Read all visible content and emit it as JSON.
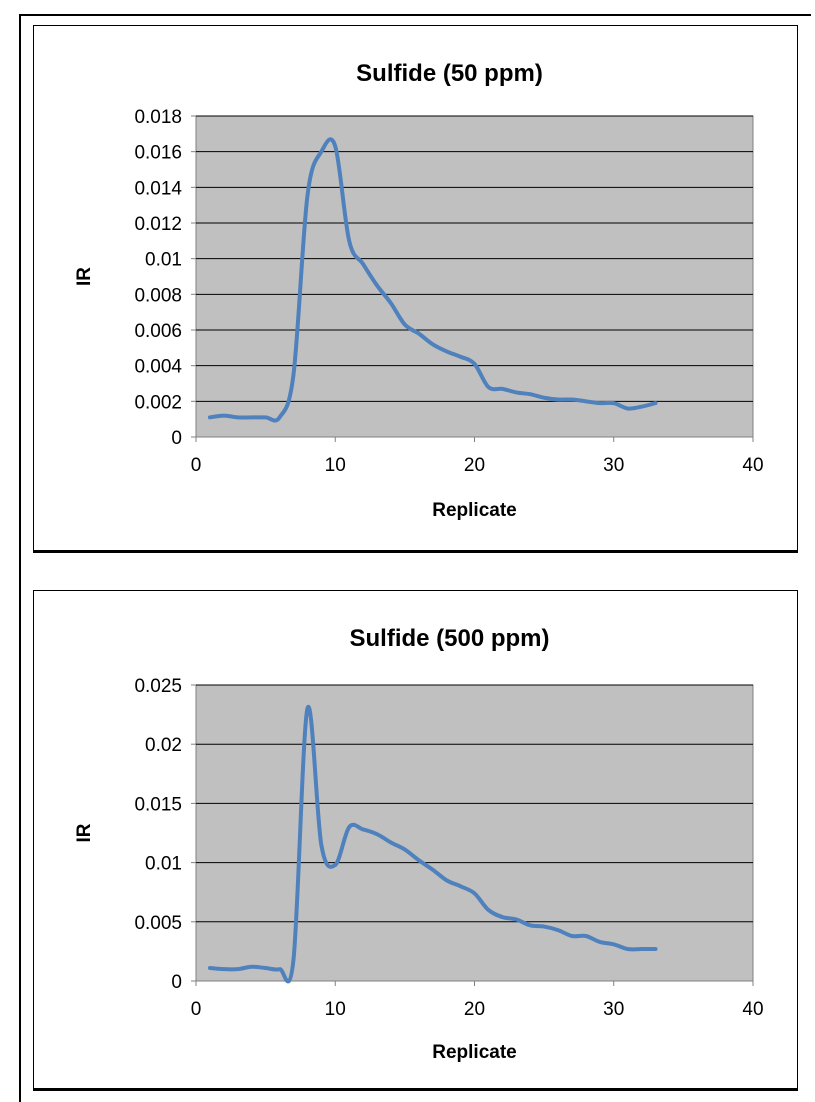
{
  "chart_data": [
    {
      "type": "line",
      "title": "Sulfide (50 ppm)",
      "xlabel": "Replicate",
      "ylabel": "IR",
      "xlim": [
        0,
        40
      ],
      "ylim": [
        0,
        0.018
      ],
      "xticks": [
        "0",
        "10",
        "20",
        "30",
        "40"
      ],
      "yticks": [
        "0",
        "0.002",
        "0.004",
        "0.006",
        "0.008",
        "0.01",
        "0.012",
        "0.014",
        "0.016",
        "0.018"
      ],
      "grid": true,
      "plot_background": "#c0c0c0",
      "line_color": "#4f81bd",
      "series": [
        {
          "x": [
            1,
            2,
            3,
            4,
            5,
            6,
            7,
            8,
            9,
            10,
            11,
            12,
            13,
            14,
            15,
            16,
            17,
            18,
            19,
            20,
            21,
            22,
            23,
            24,
            25,
            26,
            27,
            28,
            29,
            30,
            31,
            32,
            33
          ],
          "values": [
            0.0011,
            0.0012,
            0.0011,
            0.0011,
            0.0011,
            0.0011,
            0.0035,
            0.0135,
            0.016,
            0.0163,
            0.011,
            0.0097,
            0.0085,
            0.0075,
            0.0063,
            0.0058,
            0.0052,
            0.0048,
            0.0045,
            0.0041,
            0.0028,
            0.0027,
            0.0025,
            0.0024,
            0.0022,
            0.0021,
            0.0021,
            0.002,
            0.0019,
            0.0019,
            0.0016,
            0.0017,
            0.0019
          ]
        }
      ]
    },
    {
      "type": "line",
      "title": "Sulfide (500 ppm)",
      "xlabel": "Replicate",
      "ylabel": "IR",
      "xlim": [
        0,
        40
      ],
      "ylim": [
        0,
        0.025
      ],
      "xticks": [
        "0",
        "10",
        "20",
        "30",
        "40"
      ],
      "yticks": [
        "0",
        "0.005",
        "0.01",
        "0.015",
        "0.02",
        "0.025"
      ],
      "grid": true,
      "plot_background": "#c0c0c0",
      "line_color": "#4f81bd",
      "series": [
        {
          "x": [
            1,
            2,
            3,
            4,
            5,
            6,
            7,
            8,
            9,
            10,
            11,
            12,
            13,
            14,
            15,
            16,
            17,
            18,
            19,
            20,
            21,
            22,
            23,
            24,
            25,
            26,
            27,
            28,
            29,
            30,
            31,
            32,
            33
          ],
          "values": [
            0.0011,
            0.001,
            0.001,
            0.0012,
            0.0011,
            0.001,
            0.0018,
            0.023,
            0.0115,
            0.0098,
            0.013,
            0.0128,
            0.0124,
            0.0117,
            0.0111,
            0.0102,
            0.0094,
            0.0085,
            0.008,
            0.0074,
            0.006,
            0.0054,
            0.0052,
            0.0047,
            0.0046,
            0.0043,
            0.0038,
            0.0038,
            0.0033,
            0.0031,
            0.0027,
            0.0027,
            0.0027
          ]
        }
      ]
    }
  ]
}
